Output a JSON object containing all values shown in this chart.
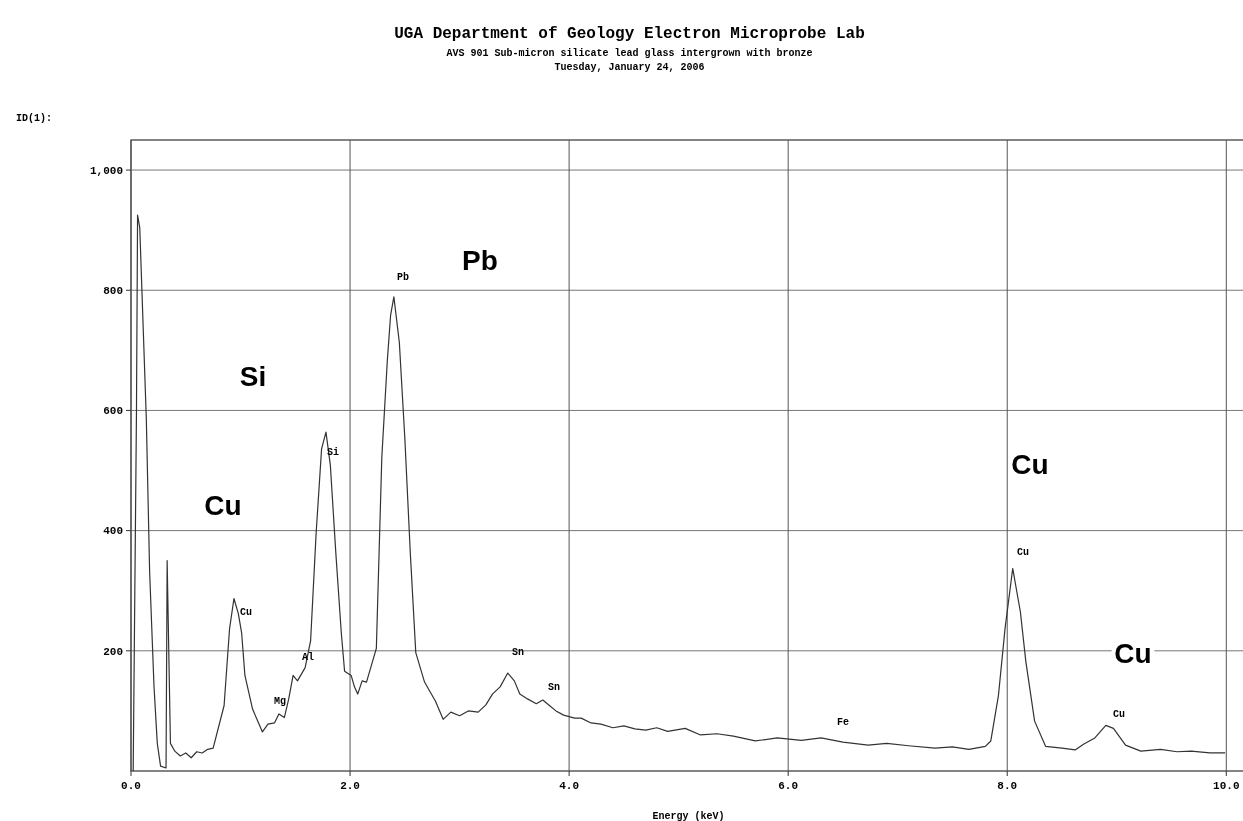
{
  "chart_data": {
    "type": "line",
    "title": "UGA Department of Geology Electron Microprobe Lab",
    "subtitle": "AVS 901 Sub-micron silicate lead glass intergrown with bronze\nTuesday, January 24, 2006",
    "xlabel": "Energy (keV)",
    "ylabel": "ID(1):",
    "xlim": [
      0,
      10.18
    ],
    "ylim": [
      0,
      1050
    ],
    "xticks": [
      {
        "value": 0,
        "label": "0.0"
      },
      {
        "value": 2,
        "label": "2.0"
      },
      {
        "value": 4,
        "label": "4.0"
      },
      {
        "value": 6,
        "label": "6.0"
      },
      {
        "value": 8,
        "label": "8.0"
      },
      {
        "value": 10,
        "label": "10.0"
      }
    ],
    "yticks": [
      200,
      400,
      600,
      800,
      {
        "value": 1000,
        "label": "1,000"
      }
    ],
    "grid": true,
    "line_style": "solid",
    "series": [
      {
        "color": "#333333",
        "x": [
          0.02,
          0.05,
          0.06,
          0.08,
          0.14,
          0.17,
          0.21,
          0.24,
          0.27,
          0.32,
          0.33,
          0.36,
          0.4,
          0.45,
          0.5,
          0.55,
          0.6,
          0.65,
          0.7,
          0.75,
          0.85,
          0.9,
          0.94,
          0.98,
          1.01,
          1.04,
          1.11,
          1.2,
          1.25,
          1.31,
          1.35,
          1.4,
          1.44,
          1.48,
          1.52,
          1.59,
          1.64,
          1.69,
          1.74,
          1.78,
          1.82,
          1.87,
          1.92,
          1.95,
          2.01,
          2.04,
          2.07,
          2.11,
          2.15,
          2.24,
          2.29,
          2.34,
          2.37,
          2.4,
          2.45,
          2.5,
          2.55,
          2.6,
          2.68,
          2.78,
          2.85,
          2.92,
          3.0,
          3.08,
          3.17,
          3.24,
          3.3,
          3.37,
          3.44,
          3.5,
          3.55,
          3.62,
          3.7,
          3.76,
          3.82,
          3.88,
          3.95,
          4.05,
          4.11,
          4.2,
          4.29,
          4.4,
          4.5,
          4.6,
          4.7,
          4.8,
          4.9,
          5.06,
          5.2,
          5.35,
          5.5,
          5.7,
          5.9,
          6.12,
          6.3,
          6.5,
          6.73,
          6.9,
          7.1,
          7.34,
          7.5,
          7.65,
          7.8,
          7.85,
          7.92,
          7.98,
          8.05,
          8.12,
          8.17,
          8.25,
          8.35,
          8.5,
          8.62,
          8.7,
          8.8,
          8.9,
          8.97,
          9.08,
          9.22,
          9.4,
          9.55,
          9.68,
          9.85,
          9.99
        ],
        "values": [
          0,
          600,
          925,
          904,
          585,
          332,
          141,
          46,
          8,
          5,
          350,
          46,
          33,
          25,
          30,
          22,
          32,
          30,
          36,
          38,
          109,
          237,
          287,
          262,
          230,
          159,
          103,
          65,
          78,
          80,
          95,
          89,
          120,
          159,
          150,
          172,
          217,
          395,
          536,
          564,
          509,
          363,
          230,
          166,
          159,
          140,
          128,
          150,
          148,
          204,
          522,
          682,
          758,
          789,
          713,
          554,
          363,
          197,
          148,
          116,
          86,
          98,
          92,
          100,
          98,
          110,
          128,
          140,
          163,
          150,
          128,
          120,
          112,
          118,
          109,
          100,
          93,
          88,
          88,
          80,
          78,
          72,
          75,
          70,
          68,
          72,
          66,
          71,
          60,
          62,
          58,
          50,
          55,
          51,
          55,
          48,
          43,
          46,
          42,
          38,
          40,
          36,
          41,
          50,
          126,
          237,
          337,
          265,
          182,
          83,
          41,
          38,
          35,
          45,
          55,
          76,
          71,
          43,
          33,
          36,
          32,
          33,
          30,
          30
        ]
      }
    ],
    "annotations": [
      "Pb",
      "Si",
      "Cu",
      "Al",
      "Mg",
      "Sn",
      "Sn",
      "Fe",
      "Cu",
      "Cu",
      "Pb",
      "Si",
      "Cu",
      "Cu",
      "Cu"
    ]
  }
}
